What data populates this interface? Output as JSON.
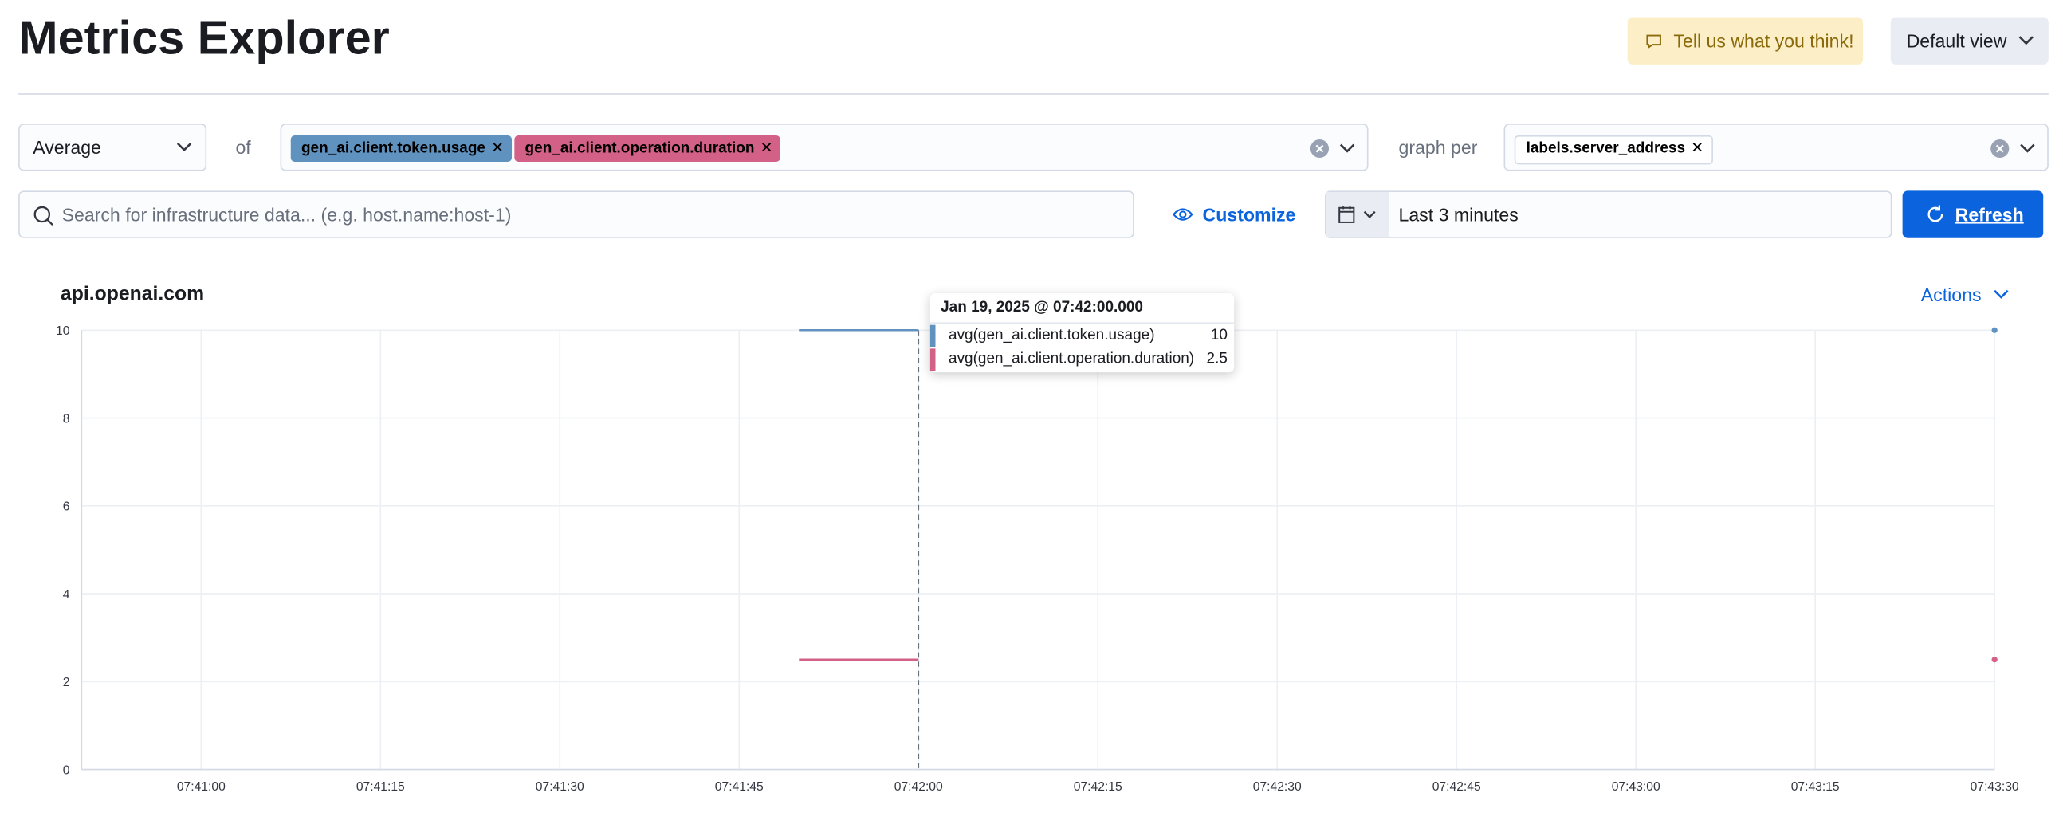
{
  "header": {
    "title": "Metrics Explorer",
    "feedback_button": "Tell us what you think!",
    "view_button": "Default view"
  },
  "controls": {
    "aggregation": "Average",
    "of_label": "of",
    "metrics": [
      "gen_ai.client.token.usage",
      "gen_ai.client.operation.duration"
    ],
    "graph_per_label": "graph per",
    "group_by": [
      "labels.server_address"
    ],
    "search_placeholder": "Search for infrastructure data... (e.g. host.name:host-1)",
    "customize_button": "Customize",
    "time_range": "Last 3 minutes",
    "refresh_button": "Refresh"
  },
  "chart_data": {
    "type": "line",
    "title": "api.openai.com",
    "actions_button": "Actions",
    "x": [
      "07:41:50",
      "07:42:00",
      "07:42:10",
      "07:43:30"
    ],
    "series": [
      {
        "name": "avg(gen_ai.client.token.usage)",
        "color": "#6092c0",
        "values": [
          10,
          10,
          null,
          10
        ]
      },
      {
        "name": "avg(gen_ai.client.operation.duration)",
        "color": "#d36086",
        "values": [
          2.5,
          2.5,
          null,
          2.5
        ]
      }
    ],
    "xlim": [
      "07:40:50",
      "07:43:30"
    ],
    "xticks": [
      "07:41:00",
      "07:41:15",
      "07:41:30",
      "07:41:45",
      "07:42:00",
      "07:42:15",
      "07:42:30",
      "07:42:45",
      "07:43:00",
      "07:43:15",
      "07:43:30"
    ],
    "ylim": [
      0,
      10
    ],
    "yticks": [
      0,
      2,
      4,
      6,
      8,
      10
    ],
    "grid": true,
    "tooltip": {
      "title": "Jan 19, 2025 @ 07:42:00.000"
    }
  }
}
